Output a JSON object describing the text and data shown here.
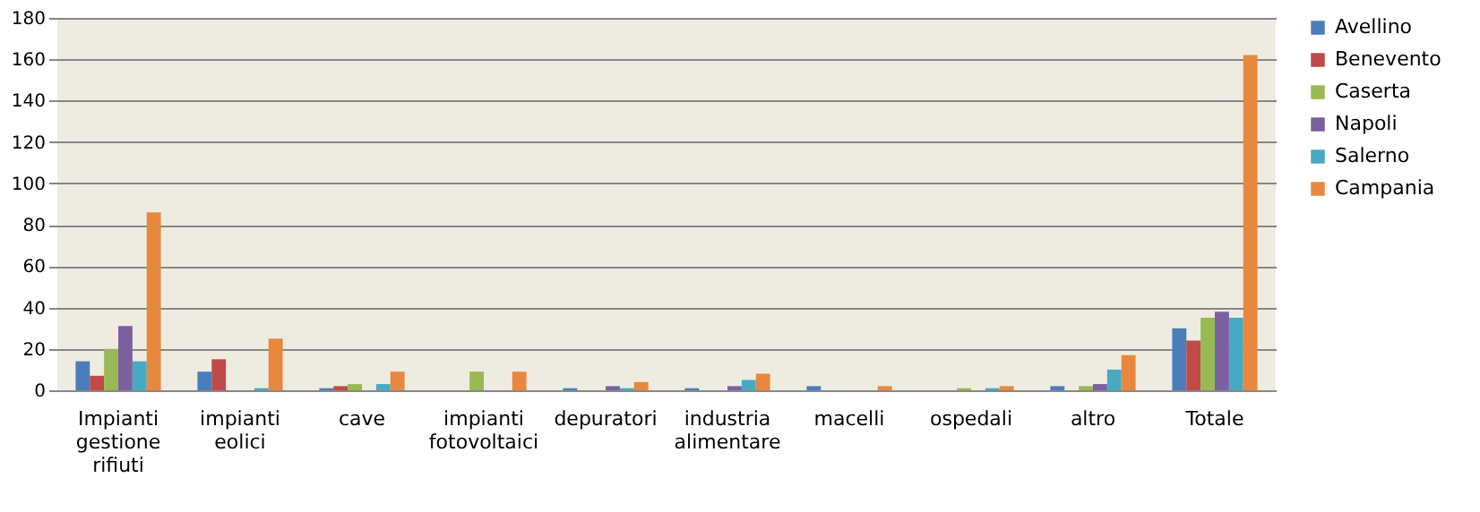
{
  "chart_data": {
    "type": "bar",
    "categories": [
      "Impianti gestione rifiuti",
      "impianti eolici",
      "cave",
      "impianti fotovoltaici",
      "depuratori",
      "industria alimentare",
      "macelli",
      "ospedali",
      "altro",
      "Totale"
    ],
    "series": [
      {
        "name": "Avellino",
        "color": "#4a7ebb",
        "values": [
          14,
          9,
          1,
          0,
          1,
          1,
          2,
          0,
          2,
          30
        ]
      },
      {
        "name": "Benevento",
        "color": "#be4b48",
        "values": [
          7,
          15,
          2,
          0,
          0,
          0,
          0,
          0,
          0,
          24
        ]
      },
      {
        "name": "Caserta",
        "color": "#98b954",
        "values": [
          20,
          0,
          3,
          9,
          0,
          0,
          0,
          1,
          2,
          35
        ]
      },
      {
        "name": "Napoli",
        "color": "#7d60a0",
        "values": [
          31,
          0,
          0,
          0,
          2,
          2,
          0,
          0,
          3,
          38
        ]
      },
      {
        "name": "Salerno",
        "color": "#46aac5",
        "values": [
          14,
          1,
          3,
          0,
          1,
          5,
          0,
          1,
          10,
          35
        ]
      },
      {
        "name": "Campania",
        "color": "#e8883e",
        "values": [
          86,
          25,
          9,
          9,
          4,
          8,
          2,
          2,
          17,
          162
        ]
      }
    ],
    "ylim": [
      0,
      180
    ],
    "yticks": [
      0,
      20,
      40,
      60,
      80,
      100,
      120,
      140,
      160,
      180
    ],
    "grid": "y",
    "legend": "right"
  }
}
